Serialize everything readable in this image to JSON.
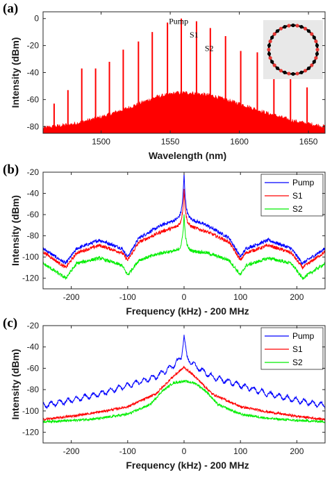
{
  "chart_data": [
    {
      "panel": "(a)",
      "type": "line",
      "xlabel": "Wavelength (nm)",
      "ylabel": "Intensity (dBm)",
      "xlim": [
        1458,
        1662
      ],
      "ylim": [
        -85,
        5
      ],
      "xticks": [
        1500,
        1550,
        1600,
        1650
      ],
      "yticks": [
        0,
        -20,
        -40,
        -60,
        -80
      ],
      "color": "#ff0000",
      "comb_lines": {
        "x": [
          1466,
          1476,
          1486,
          1496,
          1506,
          1516,
          1527,
          1537,
          1548,
          1558,
          1569,
          1579,
          1590,
          1601,
          1613,
          1625,
          1637,
          1649
        ],
        "y": [
          -63,
          -53,
          -37,
          -37,
          -32,
          -23,
          -17,
          -10,
          -3,
          0,
          -2,
          -7,
          -13,
          -24,
          -25,
          -36,
          -35,
          -51
        ]
      },
      "envelope": {
        "x": [
          1458,
          1480,
          1500,
          1520,
          1540,
          1555,
          1565,
          1580,
          1600,
          1620,
          1640,
          1662
        ],
        "y": [
          -81,
          -78,
          -73,
          -66,
          -58,
          -55,
          -55,
          -57,
          -63,
          -70,
          -76,
          -80
        ]
      },
      "annotations": [
        "Pump",
        "S1",
        "S2"
      ],
      "inset": {
        "ring_color": "#000000",
        "bead_color": "#e53935",
        "background": "#e8e8e8"
      }
    },
    {
      "panel": "(b)",
      "type": "line",
      "xlabel": "Frequency (kHz) - 200 MHz",
      "ylabel": "Intensity (dBm)",
      "xlim": [
        -250,
        250
      ],
      "ylim": [
        -130,
        -20
      ],
      "xticks": [
        -200,
        -100,
        0,
        100,
        200
      ],
      "yticks": [
        -20,
        -40,
        -60,
        -80,
        -100,
        -120
      ],
      "series": [
        {
          "name": "Pump",
          "color": "#0000ff",
          "peak": -21,
          "x": [
            -250,
            -210,
            -190,
            -150,
            -110,
            -100,
            -80,
            -40,
            -10,
            10,
            40,
            80,
            100,
            110,
            150,
            190,
            210,
            250
          ],
          "y": [
            -92,
            -106,
            -92,
            -84,
            -92,
            -100,
            -82,
            -70,
            -64,
            -64,
            -70,
            -82,
            -100,
            -92,
            -84,
            -92,
            -106,
            -92
          ]
        },
        {
          "name": "S1",
          "color": "#ff0000",
          "peak": -36,
          "x": [
            -250,
            -210,
            -190,
            -150,
            -110,
            -100,
            -80,
            -40,
            -10,
            10,
            40,
            80,
            100,
            110,
            150,
            190,
            210,
            250
          ],
          "y": [
            -95,
            -110,
            -96,
            -89,
            -96,
            -103,
            -86,
            -76,
            -71,
            -71,
            -76,
            -86,
            -103,
            -96,
            -89,
            -96,
            -110,
            -95
          ]
        },
        {
          "name": "S2",
          "color": "#00ee00",
          "peak": -60,
          "x": [
            -250,
            -210,
            -190,
            -150,
            -110,
            -100,
            -80,
            -40,
            -10,
            10,
            40,
            80,
            100,
            110,
            150,
            190,
            210,
            250
          ],
          "y": [
            -106,
            -120,
            -106,
            -101,
            -108,
            -117,
            -103,
            -96,
            -94,
            -94,
            -96,
            -103,
            -117,
            -108,
            -101,
            -106,
            -120,
            -106
          ]
        }
      ],
      "legend": "top-right"
    },
    {
      "panel": "(c)",
      "type": "line",
      "xlabel": "Frequency (kHz) - 200 MHz",
      "ylabel": "Intensity (dBm)",
      "xlim": [
        -250,
        250
      ],
      "ylim": [
        -130,
        -20
      ],
      "xticks": [
        -200,
        -100,
        0,
        100,
        200
      ],
      "yticks": [
        -20,
        -40,
        -60,
        -80,
        -100,
        -120
      ],
      "series": [
        {
          "name": "Pump",
          "color": "#0000ff",
          "peak": -29,
          "x": [
            -250,
            -200,
            -150,
            -100,
            -50,
            -20,
            -5,
            0,
            5,
            20,
            50,
            100,
            150,
            200,
            250
          ],
          "y": [
            -95,
            -90,
            -84,
            -76,
            -68,
            -58,
            -50,
            -29,
            -50,
            -58,
            -68,
            -76,
            -84,
            -90,
            -95
          ]
        },
        {
          "name": "S1",
          "color": "#ff0000",
          "peak": -59,
          "x": [
            -250,
            -200,
            -150,
            -100,
            -50,
            -20,
            0,
            20,
            50,
            100,
            150,
            200,
            250
          ],
          "y": [
            -108,
            -105,
            -101,
            -96,
            -84,
            -68,
            -59,
            -68,
            -84,
            -96,
            -101,
            -105,
            -108
          ]
        },
        {
          "name": "S2",
          "color": "#00ee00",
          "peak": -72,
          "x": [
            -250,
            -200,
            -150,
            -100,
            -60,
            -40,
            -20,
            0,
            20,
            40,
            60,
            100,
            150,
            200,
            250
          ],
          "y": [
            -110,
            -109,
            -107,
            -103,
            -94,
            -82,
            -74,
            -72,
            -74,
            -82,
            -94,
            -103,
            -107,
            -109,
            -110
          ]
        }
      ],
      "legend": "top-right"
    }
  ]
}
